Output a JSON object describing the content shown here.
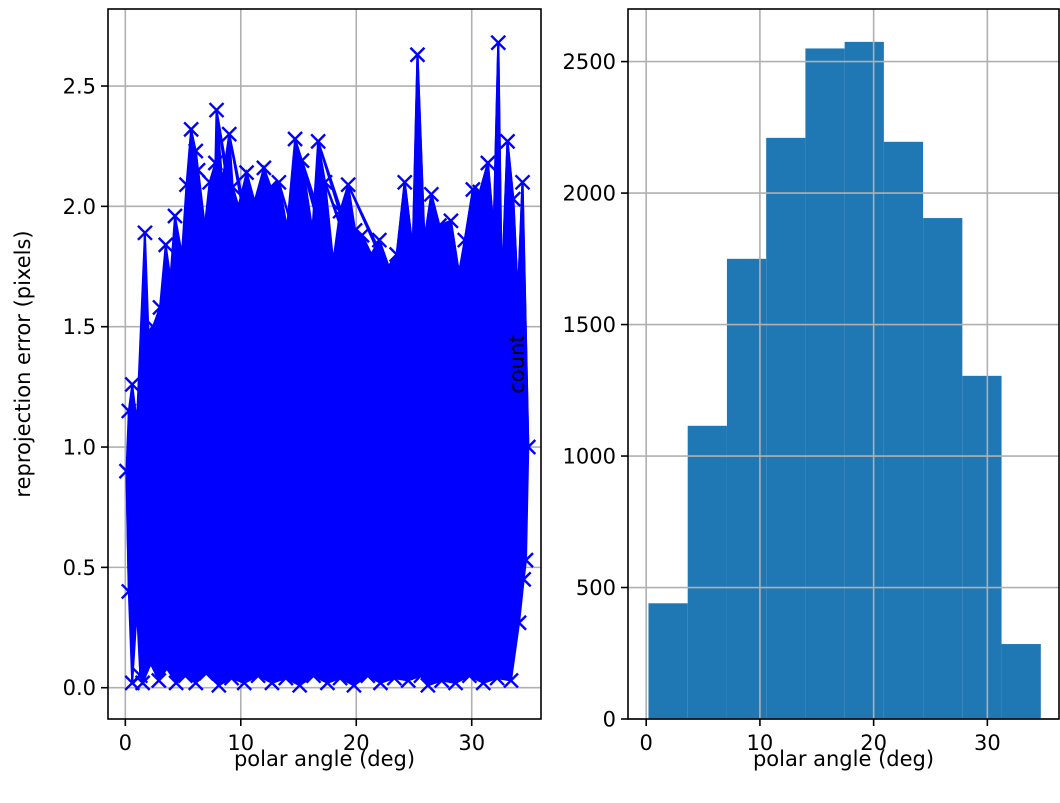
{
  "chart_data": [
    {
      "type": "scatter",
      "marker": "x",
      "connected": true,
      "color": "#0000ff",
      "title": "",
      "xlabel": "polar angle (deg)",
      "ylabel": "reprojection error (pixels)",
      "xlim": [
        -1.5,
        36
      ],
      "ylim": [
        -0.13,
        2.82
      ],
      "xticks": [
        0,
        10,
        20,
        30
      ],
      "xtick_labels": [
        "0",
        "10",
        "20",
        "30"
      ],
      "yticks": [
        0.0,
        0.5,
        1.0,
        1.5,
        2.0,
        2.5
      ],
      "ytick_labels": [
        "0.0",
        "0.5",
        "1.0",
        "1.5",
        "2.0",
        "2.5"
      ],
      "grid": true,
      "series": [
        {
          "points": [
            [
              0.1,
              0.9
            ],
            [
              0.3,
              1.15
            ],
            [
              0.6,
              1.26
            ],
            [
              1.0,
              1.1
            ],
            [
              1.3,
              0.05
            ],
            [
              1.7,
              1.89
            ],
            [
              2.0,
              1.48
            ],
            [
              2.4,
              1.5
            ],
            [
              3.0,
              1.58
            ],
            [
              3.5,
              1.84
            ],
            [
              3.9,
              1.7
            ],
            [
              4.3,
              1.96
            ],
            [
              4.9,
              1.8
            ],
            [
              5.3,
              2.09
            ],
            [
              5.7,
              2.32
            ],
            [
              6.1,
              2.23
            ],
            [
              6.3,
              2.15
            ],
            [
              6.8,
              1.88
            ],
            [
              7.3,
              2.1
            ],
            [
              7.8,
              2.18
            ],
            [
              7.9,
              2.4
            ],
            [
              8.4,
              2.1
            ],
            [
              9.0,
              2.3
            ],
            [
              9.3,
              2.08
            ],
            [
              9.8,
              2.0
            ],
            [
              10.5,
              2.14
            ],
            [
              11.2,
              2.02
            ],
            [
              12.0,
              2.16
            ],
            [
              12.6,
              2.08
            ],
            [
              13.3,
              2.1
            ],
            [
              14.0,
              1.91
            ],
            [
              14.7,
              2.28
            ],
            [
              15.3,
              2.19
            ],
            [
              16.2,
              1.9
            ],
            [
              16.7,
              2.27
            ],
            [
              17.3,
              2.1
            ],
            [
              18.0,
              1.77
            ],
            [
              18.6,
              1.98
            ],
            [
              19.3,
              2.09
            ],
            [
              19.9,
              1.9
            ],
            [
              20.5,
              1.88
            ],
            [
              21.3,
              1.8
            ],
            [
              22.0,
              1.86
            ],
            [
              22.8,
              1.75
            ],
            [
              23.5,
              1.8
            ],
            [
              24.2,
              2.1
            ],
            [
              24.9,
              1.82
            ],
            [
              25.3,
              2.63
            ],
            [
              25.9,
              1.86
            ],
            [
              26.5,
              2.05
            ],
            [
              27.2,
              1.92
            ],
            [
              28.2,
              1.94
            ],
            [
              28.9,
              1.72
            ],
            [
              29.4,
              1.86
            ],
            [
              30.1,
              2.07
            ],
            [
              30.7,
              2.06
            ],
            [
              31.4,
              2.18
            ],
            [
              31.9,
              1.9
            ],
            [
              32.3,
              2.68
            ],
            [
              32.6,
              1.65
            ],
            [
              33.1,
              2.27
            ],
            [
              33.6,
              2.03
            ],
            [
              34.0,
              1.62
            ],
            [
              34.4,
              2.1
            ],
            [
              34.7,
              0.53
            ],
            [
              34.9,
              1.0
            ],
            [
              0.3,
              0.4
            ],
            [
              0.6,
              0.02
            ],
            [
              1.0,
              0.33
            ],
            [
              1.5,
              0.02
            ],
            [
              2.2,
              0.1
            ],
            [
              2.9,
              0.03
            ],
            [
              3.6,
              0.08
            ],
            [
              4.4,
              0.02
            ],
            [
              5.2,
              0.05
            ],
            [
              6.1,
              0.02
            ],
            [
              7.0,
              0.06
            ],
            [
              8.1,
              0.01
            ],
            [
              9.2,
              0.04
            ],
            [
              10.3,
              0.02
            ],
            [
              11.5,
              0.05
            ],
            [
              12.7,
              0.02
            ],
            [
              13.9,
              0.04
            ],
            [
              15.1,
              0.01
            ],
            [
              16.3,
              0.05
            ],
            [
              17.5,
              0.02
            ],
            [
              18.6,
              0.04
            ],
            [
              19.8,
              0.01
            ],
            [
              21.0,
              0.05
            ],
            [
              22.1,
              0.02
            ],
            [
              23.3,
              0.04
            ],
            [
              24.5,
              0.03
            ],
            [
              25.6,
              0.05
            ],
            [
              26.2,
              0.01
            ],
            [
              27.4,
              0.03
            ],
            [
              28.6,
              0.02
            ],
            [
              29.8,
              0.05
            ],
            [
              31.0,
              0.02
            ],
            [
              32.2,
              0.04
            ],
            [
              33.4,
              0.03
            ],
            [
              34.1,
              0.27
            ],
            [
              34.5,
              0.45
            ]
          ]
        }
      ]
    },
    {
      "type": "bar",
      "histogram": true,
      "color": "#1f77b4",
      "title": "",
      "xlabel": "polar angle (deg)",
      "ylabel": "count",
      "xlim": [
        -1.6,
        36.3
      ],
      "ylim": [
        0,
        2700
      ],
      "xticks": [
        0,
        10,
        20,
        30
      ],
      "xtick_labels": [
        "0",
        "10",
        "20",
        "30"
      ],
      "yticks": [
        0,
        500,
        1000,
        1500,
        2000,
        2500
      ],
      "ytick_labels": [
        "0",
        "500",
        "1000",
        "1500",
        "2000",
        "2500"
      ],
      "grid": true,
      "bin_edges": [
        0.2,
        3.65,
        7.1,
        10.55,
        14.0,
        17.45,
        20.9,
        24.35,
        27.8,
        31.25,
        34.7
      ],
      "values": [
        440,
        1115,
        1750,
        2210,
        2550,
        2575,
        2195,
        1905,
        1305,
        285
      ]
    }
  ]
}
